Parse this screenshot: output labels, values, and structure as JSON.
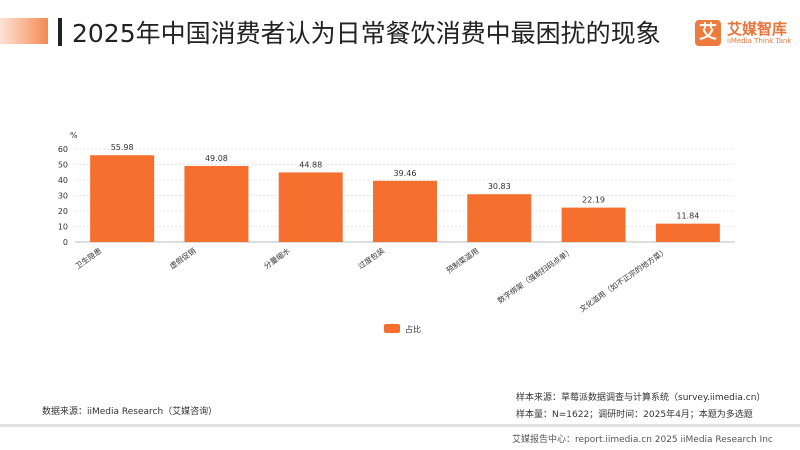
{
  "header": {
    "title": "2025年中国消费者认为日常餐饮消费中最困扰的现象",
    "logo_glyph": "艾",
    "logo_cn": "艾媒智库",
    "logo_en": "iiMedia Think Tank"
  },
  "chart_data": {
    "type": "bar",
    "unit": "%",
    "categories": [
      "卫生隐患",
      "虚假促销",
      "分量缩水",
      "过度包装",
      "预制菜滥用",
      "数字绑架（强制扫码点单）",
      "文化滥用（如不正宗的地方菜）"
    ],
    "series": [
      {
        "name": "占比",
        "values": [
          55.98,
          49.08,
          44.88,
          39.46,
          30.83,
          22.19,
          11.84
        ]
      }
    ],
    "ylim": [
      0,
      60
    ],
    "yticks": [
      0,
      10,
      20,
      30,
      40,
      50,
      60
    ],
    "grid": true,
    "legend": "bottom",
    "color": "#f5702f"
  },
  "footer": {
    "source": "数据来源：iiMedia Research（艾媒咨询）",
    "sample_source": "样本来源：草莓派数据调查与计算系统（survey.iimedia.cn）",
    "sample_size": "样本量：N=1622；调研时间：2025年4月；本题为多选题",
    "report": "艾媒报告中心：report.iimedia.cn   2025 iiMedia Research Inc"
  }
}
